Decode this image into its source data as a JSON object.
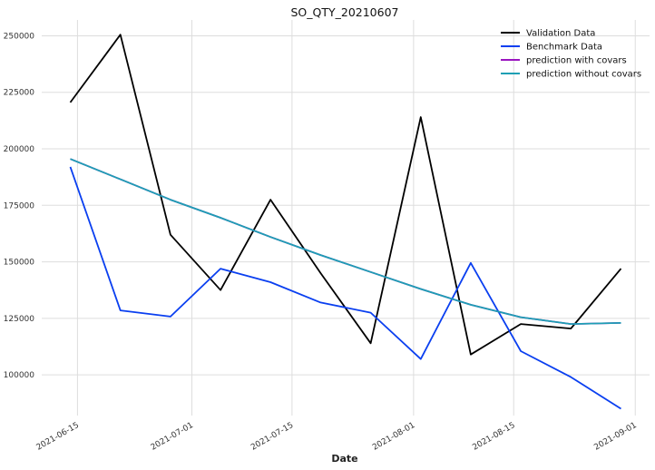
{
  "chart_data": {
    "type": "line",
    "title": "SO_QTY_20210607",
    "xlabel": "Date",
    "ylabel": "",
    "x": [
      "2021-06-14",
      "2021-06-21",
      "2021-06-28",
      "2021-07-05",
      "2021-07-12",
      "2021-07-19",
      "2021-07-26",
      "2021-08-02",
      "2021-08-09",
      "2021-08-16",
      "2021-08-23",
      "2021-08-30"
    ],
    "xlim": [
      "2021-06-10",
      "2021-09-03"
    ],
    "ylim": [
      82000,
      257000
    ],
    "x_ticks": [
      {
        "date": "2021-06-15",
        "label": "2021-06-15"
      },
      {
        "date": "2021-07-01",
        "label": "2021-07-01"
      },
      {
        "date": "2021-07-15",
        "label": "2021-07-15"
      },
      {
        "date": "2021-08-01",
        "label": "2021-08-01"
      },
      {
        "date": "2021-08-15",
        "label": "2021-08-15"
      },
      {
        "date": "2021-09-01",
        "label": "2021-09-01"
      }
    ],
    "y_ticks": [
      100000,
      125000,
      150000,
      175000,
      200000,
      225000,
      250000
    ],
    "grid": true,
    "legend_position": "top-right",
    "series": [
      {
        "name": "Validation Data",
        "color": "#000000",
        "values": [
          220500,
          250500,
          162000,
          137500,
          177500,
          145000,
          114000,
          214000,
          109000,
          122500,
          120500,
          147000
        ]
      },
      {
        "name": "Benchmark Data",
        "color": "#0a3ff0",
        "values": [
          192000,
          128500,
          125800,
          147000,
          141000,
          132000,
          127500,
          107000,
          149500,
          110500,
          99000,
          85000
        ]
      },
      {
        "name": "prediction with covars",
        "color": "#9b16c0",
        "values": [
          195500,
          186500,
          177500,
          169500,
          161000,
          153000,
          145500,
          138000,
          131000,
          125500,
          122500,
          123000
        ]
      },
      {
        "name": "prediction without covars",
        "color": "#1d9fb4",
        "values": [
          195500,
          186500,
          177500,
          169500,
          161000,
          153000,
          145500,
          138000,
          131000,
          125500,
          122500,
          123000
        ]
      }
    ]
  }
}
